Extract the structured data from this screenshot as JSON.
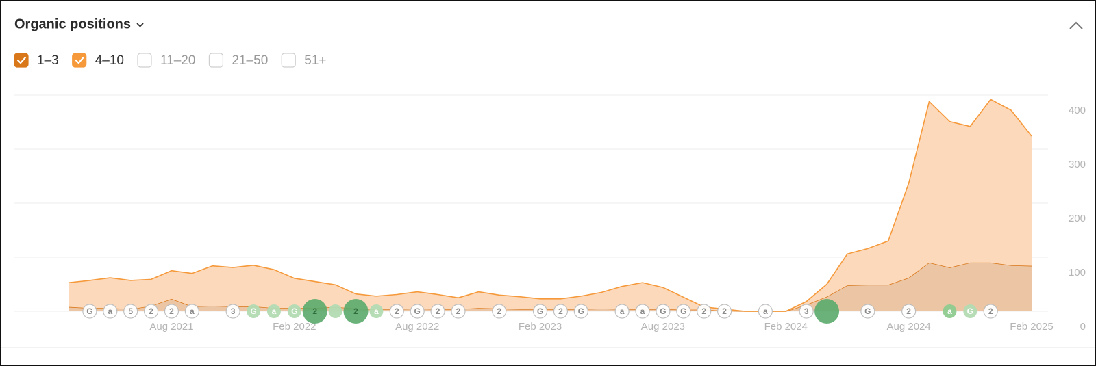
{
  "header": {
    "title": "Organic positions"
  },
  "chart_data": {
    "type": "area",
    "x": [
      "2021-03",
      "2021-04",
      "2021-05",
      "2021-06",
      "2021-07",
      "2021-08",
      "2021-09",
      "2021-10",
      "2021-11",
      "2021-12",
      "2022-01",
      "2022-02",
      "2022-03",
      "2022-04",
      "2022-05",
      "2022-06",
      "2022-07",
      "2022-08",
      "2022-09",
      "2022-10",
      "2022-11",
      "2022-12",
      "2023-01",
      "2023-02",
      "2023-03",
      "2023-04",
      "2023-05",
      "2023-06",
      "2023-07",
      "2023-08",
      "2023-09",
      "2023-10",
      "2023-11",
      "2023-12",
      "2024-01",
      "2024-02",
      "2024-03",
      "2024-04",
      "2024-05",
      "2024-06",
      "2024-07",
      "2024-08",
      "2024-09",
      "2024-10",
      "2024-11",
      "2024-12",
      "2025-01",
      "2025-02"
    ],
    "series": [
      {
        "name": "1–3",
        "color": "#d9781a",
        "fill": "#ecc6a4",
        "values": [
          8,
          6,
          6,
          4,
          10,
          23,
          9,
          10,
          9,
          9,
          6,
          6,
          6,
          8,
          5,
          4,
          4,
          5,
          4,
          4,
          6,
          5,
          4,
          4,
          4,
          4,
          5,
          4,
          4,
          4,
          3,
          3,
          1,
          0,
          0,
          0,
          12,
          27,
          48,
          49,
          49,
          62,
          90,
          81,
          90,
          90,
          85,
          84
        ]
      },
      {
        "name": "4–10",
        "color": "#f5993a",
        "fill": "#fdd9bb",
        "values": [
          45,
          51,
          56,
          53,
          49,
          52,
          61,
          74,
          72,
          76,
          71,
          55,
          49,
          41,
          27,
          24,
          27,
          31,
          27,
          21,
          30,
          25,
          23,
          19,
          19,
          24,
          30,
          42,
          49,
          40,
          23,
          5,
          3,
          0,
          0,
          0,
          6,
          23,
          58,
          67,
          81,
          175,
          298,
          270,
          252,
          302,
          287,
          240
        ]
      }
    ],
    "inactive_series": [
      "11–20",
      "21–50",
      "51+"
    ],
    "ylim": [
      0,
      400
    ],
    "yticks": [
      0,
      100,
      200,
      300,
      400
    ],
    "grid": true,
    "xticks": [
      {
        "value": "2021-08",
        "label": "Aug 2021"
      },
      {
        "value": "2022-02",
        "label": "Feb 2022"
      },
      {
        "value": "2022-08",
        "label": "Aug 2022"
      },
      {
        "value": "2023-02",
        "label": "Feb 2023"
      },
      {
        "value": "2023-08",
        "label": "Aug 2023"
      },
      {
        "value": "2024-02",
        "label": "Feb 2024"
      },
      {
        "value": "2024-08",
        "label": "Aug 2024"
      },
      {
        "value": "2025-02",
        "label": "Feb 2025"
      }
    ],
    "events": [
      {
        "date": "2021-04",
        "label": "G",
        "color": "#ffffff"
      },
      {
        "date": "2021-05",
        "label": "a",
        "color": "#ffffff"
      },
      {
        "date": "2021-06",
        "label": "5",
        "color": "#ffffff"
      },
      {
        "date": "2021-07",
        "label": "2",
        "color": "#ffffff"
      },
      {
        "date": "2021-08",
        "label": "2",
        "color": "#ffffff"
      },
      {
        "date": "2021-09",
        "label": "a",
        "color": "#ffffff"
      },
      {
        "date": "2021-11",
        "label": "3",
        "color": "#ffffff"
      },
      {
        "date": "2021-12",
        "label": "G",
        "color": "#b3dbb3"
      },
      {
        "date": "2022-01",
        "label": "a",
        "color": "#b3dbb3"
      },
      {
        "date": "2022-02",
        "label": "G",
        "color": "#b3dbb3"
      },
      {
        "date": "2022-03",
        "label": "2",
        "color": "#5aaa6b"
      },
      {
        "date": "2022-04",
        "label": null,
        "color": "#b3dbb3"
      },
      {
        "date": "2022-05",
        "label": "2",
        "color": "#5aaa6b"
      },
      {
        "date": "2022-06",
        "label": "a",
        "color": "#b3dbb3"
      },
      {
        "date": "2022-07",
        "label": "2",
        "color": "#ffffff"
      },
      {
        "date": "2022-08",
        "label": "G",
        "color": "#ffffff"
      },
      {
        "date": "2022-09",
        "label": "2",
        "color": "#ffffff"
      },
      {
        "date": "2022-10",
        "label": "2",
        "color": "#ffffff"
      },
      {
        "date": "2022-12",
        "label": "2",
        "color": "#ffffff"
      },
      {
        "date": "2023-02",
        "label": "G",
        "color": "#ffffff"
      },
      {
        "date": "2023-03",
        "label": "2",
        "color": "#ffffff"
      },
      {
        "date": "2023-04",
        "label": "G",
        "color": "#ffffff"
      },
      {
        "date": "2023-06",
        "label": "a",
        "color": "#ffffff"
      },
      {
        "date": "2023-07",
        "label": "a",
        "color": "#ffffff"
      },
      {
        "date": "2023-08",
        "label": "G",
        "color": "#ffffff"
      },
      {
        "date": "2023-09",
        "label": "G",
        "color": "#ffffff"
      },
      {
        "date": "2023-10",
        "label": "2",
        "color": "#ffffff"
      },
      {
        "date": "2023-11",
        "label": "2",
        "color": "#ffffff"
      },
      {
        "date": "2024-01",
        "label": "a",
        "color": "#ffffff"
      },
      {
        "date": "2024-03",
        "label": "3",
        "color": "#ffffff"
      },
      {
        "date": "2024-04",
        "label": null,
        "color": "#5aaa6b"
      },
      {
        "date": "2024-06",
        "label": "G",
        "color": "#ffffff"
      },
      {
        "date": "2024-08",
        "label": "2",
        "color": "#ffffff"
      },
      {
        "date": "2024-10",
        "label": "a",
        "color": "#8fcb8f"
      },
      {
        "date": "2024-11",
        "label": "G",
        "color": "#b3dbb3"
      },
      {
        "date": "2024-12",
        "label": "2",
        "color": "#ffffff"
      }
    ]
  }
}
